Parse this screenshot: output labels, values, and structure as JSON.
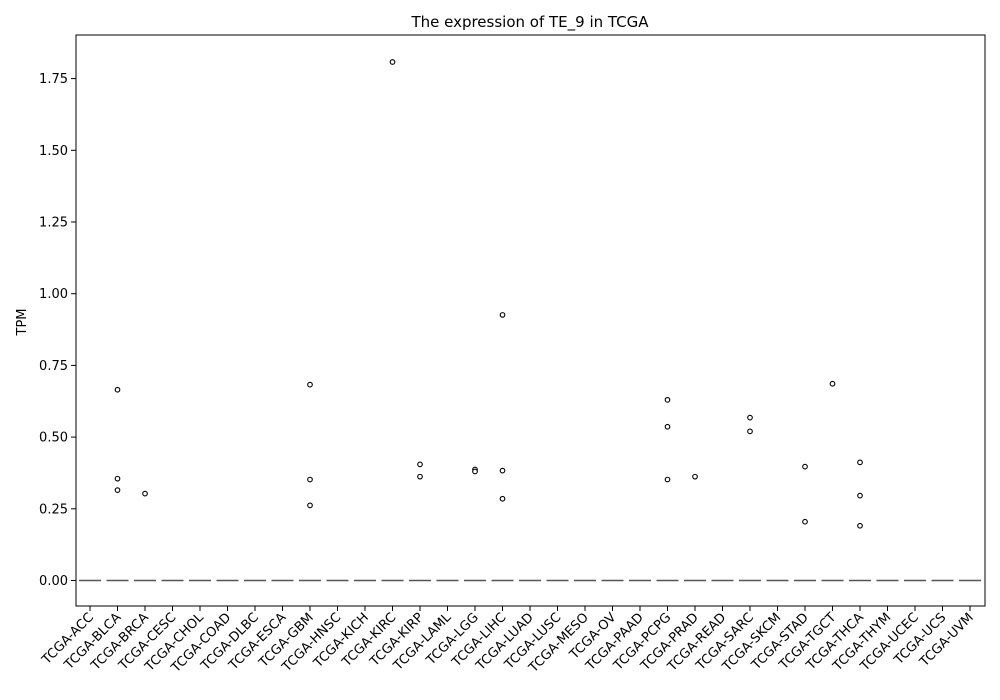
{
  "chart_data": {
    "type": "box",
    "title": "The expression of TE_9 in TCGA",
    "xlabel": "",
    "ylabel": "TPM",
    "ylim": [
      -0.09,
      1.9
    ],
    "yticks": [
      0.0,
      0.25,
      0.5,
      0.75,
      1.0,
      1.25,
      1.5,
      1.75
    ],
    "ytick_labels": [
      "0.00",
      "0.25",
      "0.50",
      "0.75",
      "1.00",
      "1.25",
      "1.50",
      "1.75"
    ],
    "grid": false,
    "categories": [
      "TCGA-ACC",
      "TCGA-BLCA",
      "TCGA-BRCA",
      "TCGA-CESC",
      "TCGA-CHOL",
      "TCGA-COAD",
      "TCGA-DLBC",
      "TCGA-ESCA",
      "TCGA-GBM",
      "TCGA-HNSC",
      "TCGA-KICH",
      "TCGA-KIRC",
      "TCGA-KIRP",
      "TCGA-LAML",
      "TCGA-LGG",
      "TCGA-LIHC",
      "TCGA-LUAD",
      "TCGA-LUSC",
      "TCGA-MESO",
      "TCGA-OV",
      "TCGA-PAAD",
      "TCGA-PCPG",
      "TCGA-PRAD",
      "TCGA-READ",
      "TCGA-SARC",
      "TCGA-SKCM",
      "TCGA-STAD",
      "TCGA-TGCT",
      "TCGA-THCA",
      "TCGA-THYM",
      "TCGA-UCEC",
      "TCGA-UCS",
      "TCGA-UVM"
    ],
    "medians": [
      0,
      0,
      0,
      0,
      0,
      0,
      0,
      0,
      0,
      0,
      0,
      0,
      0,
      0,
      0,
      0,
      0,
      0,
      0,
      0,
      0,
      0,
      0,
      0,
      0,
      0,
      0,
      0,
      0,
      0,
      0,
      0,
      0
    ],
    "outliers": [
      [],
      [
        0.665,
        0.355,
        0.315
      ],
      [
        0.303
      ],
      [],
      [],
      [],
      [],
      [],
      [
        0.683,
        0.352,
        0.262
      ],
      [],
      [],
      [
        1.808
      ],
      [
        0.405,
        0.362
      ],
      [],
      [
        0.387,
        0.38
      ],
      [
        0.926,
        0.383,
        0.285
      ],
      [],
      [],
      [],
      [],
      [],
      [
        0.63,
        0.536,
        0.352
      ],
      [
        0.362
      ],
      [],
      [
        0.568,
        0.52
      ],
      [],
      [
        0.397,
        0.205
      ],
      [
        0.686
      ],
      [
        0.412,
        0.296,
        0.191
      ],
      [],
      [],
      [],
      []
    ],
    "box_color": "#4878a8",
    "median_color": "#555555",
    "outlier_color": "#000000"
  }
}
